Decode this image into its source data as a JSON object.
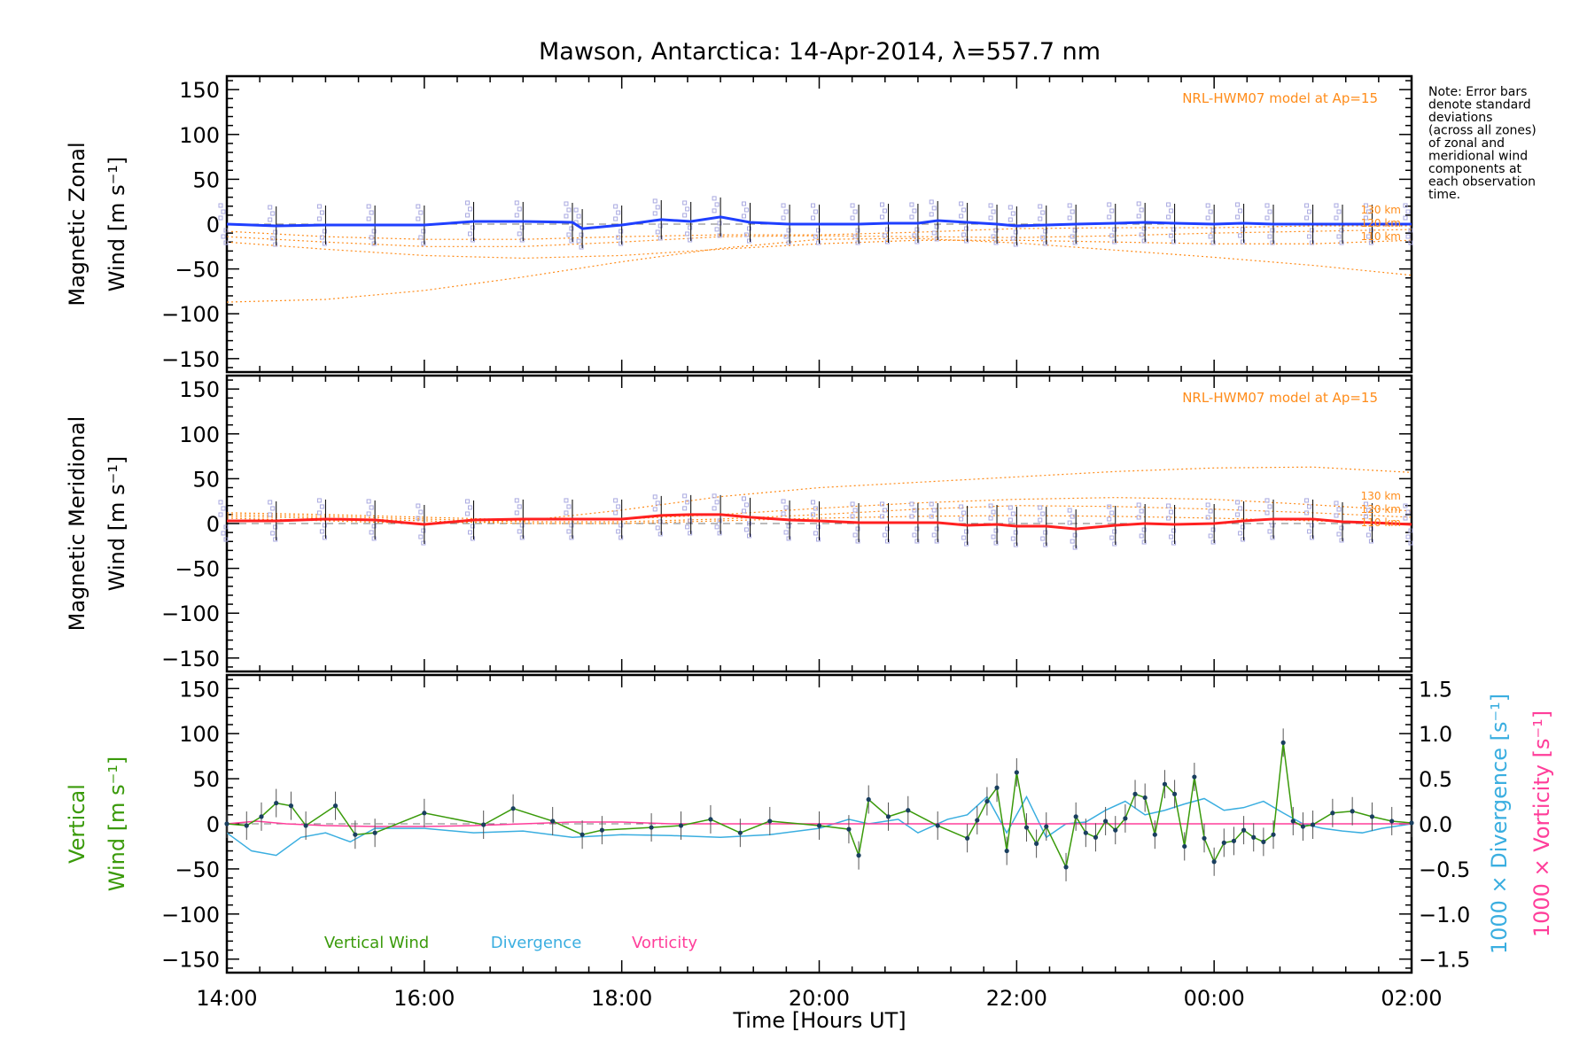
{
  "title": "Mawson, Antarctica: 14-Apr-2014, λ=557.7 nm",
  "note_lines": [
    "Note: Error bars",
    "denote standard",
    "deviations",
    "(across all zones)",
    "of zonal and",
    "meridional wind",
    "components at",
    "each observation",
    "time."
  ],
  "colors": {
    "zonal": "#1f3fff",
    "meridional": "#ff2020",
    "model": "#ff8c1a",
    "vertical": "#3a9a0a",
    "divergence": "#3aaee0",
    "vorticity": "#ff3e9a",
    "scatter": "#a8a8e0",
    "axis": "#000000"
  },
  "chart_data": [
    {
      "type": "line",
      "panel": "zonal",
      "ylabel_line1": "Magnetic Zonal",
      "ylabel_line2": "Wind [m s⁻¹]",
      "ylim": [
        -165,
        165
      ],
      "yticks": [
        150,
        100,
        50,
        0,
        -50,
        -100,
        -150
      ],
      "model_label": "NRL-HWM07 model at Ap=15",
      "model_altitude_labels": [
        "130 km",
        "120 km",
        "110 km"
      ],
      "series": [
        {
          "style": "observed",
          "x": [
            14.0,
            14.5,
            15.0,
            15.5,
            16.0,
            16.5,
            17.0,
            17.5,
            17.6,
            18.0,
            18.4,
            18.7,
            19.0,
            19.3,
            19.7,
            20.0,
            20.4,
            20.7,
            21.0,
            21.2,
            21.5,
            21.8,
            22.0,
            22.3,
            22.6,
            23.0,
            23.3,
            23.6,
            24.0,
            24.3,
            24.6,
            25.0,
            25.3,
            25.6,
            26.0
          ],
          "y": [
            0,
            -2,
            -1,
            -1,
            -1,
            3,
            3,
            2,
            -5,
            -1,
            5,
            3,
            8,
            2,
            0,
            0,
            0,
            1,
            1,
            4,
            2,
            0,
            -2,
            -1,
            0,
            1,
            2,
            1,
            0,
            1,
            0,
            0,
            0,
            0,
            0
          ]
        },
        {
          "style": "model",
          "name": "130 km",
          "x": [
            14.0,
            15.0,
            16.0,
            17.0,
            18.0,
            19.0,
            20.0,
            21.0,
            22.0,
            23.0,
            24.0,
            25.0,
            26.0
          ],
          "y": [
            -8,
            -14,
            -17,
            -17,
            -14,
            -12,
            -12,
            -9,
            -5,
            -4,
            -4,
            -2,
            -2
          ]
        },
        {
          "style": "model",
          "name": "120 km",
          "x": [
            14.0,
            15.0,
            16.0,
            17.0,
            18.0,
            19.0,
            20.0,
            21.0,
            22.0,
            23.0,
            24.0,
            25.0,
            26.0
          ],
          "y": [
            -14,
            -20,
            -25,
            -25,
            -20,
            -14,
            -13,
            -14,
            -15,
            -13,
            -10,
            -8,
            -6
          ]
        },
        {
          "style": "model",
          "name": "110 km",
          "x": [
            14.0,
            15.0,
            16.0,
            17.0,
            18.0,
            19.0,
            20.0,
            21.0,
            22.0,
            23.0,
            24.0,
            25.0,
            26.0
          ],
          "y": [
            -20,
            -28,
            -35,
            -38,
            -35,
            -28,
            -22,
            -18,
            -18,
            -20,
            -22,
            -22,
            -18
          ]
        },
        {
          "style": "model",
          "name": "",
          "x": [
            14.0,
            15.0,
            16.0,
            17.0,
            18.0,
            19.0,
            20.0,
            21.0,
            22.0,
            23.0,
            24.0,
            25.0,
            26.0
          ],
          "y": [
            -87,
            -84,
            -74,
            -59,
            -42,
            -27,
            -17,
            -16,
            -21,
            -29,
            -37,
            -46,
            -57
          ]
        }
      ]
    },
    {
      "type": "line",
      "panel": "meridional",
      "ylabel_line1": "Magnetic Meridional",
      "ylabel_line2": "Wind [m s⁻¹]",
      "ylim": [
        -165,
        165
      ],
      "yticks": [
        150,
        100,
        50,
        0,
        -50,
        -100,
        -150
      ],
      "model_label": "NRL-HWM07 model at Ap=15",
      "model_altitude_labels": [
        "130 km",
        "120 km",
        "110 km"
      ],
      "series": [
        {
          "style": "observed",
          "x": [
            14.0,
            14.5,
            15.0,
            15.5,
            16.0,
            16.5,
            17.0,
            17.5,
            18.0,
            18.4,
            18.7,
            19.0,
            19.3,
            19.7,
            20.0,
            20.4,
            20.7,
            21.0,
            21.2,
            21.5,
            21.8,
            22.0,
            22.3,
            22.6,
            23.0,
            23.3,
            23.6,
            24.0,
            24.3,
            24.6,
            25.0,
            25.3,
            25.6,
            26.0
          ],
          "y": [
            3,
            3,
            5,
            4,
            -1,
            4,
            5,
            5,
            5,
            9,
            10,
            10,
            7,
            4,
            3,
            1,
            1,
            1,
            1,
            -2,
            -1,
            -3,
            -3,
            -6,
            -2,
            0,
            -1,
            0,
            3,
            5,
            5,
            2,
            1,
            -1
          ]
        },
        {
          "style": "model",
          "name": "130 km",
          "x": [
            14.0,
            15.0,
            16.0,
            17.0,
            18.0,
            19.0,
            20.0,
            21.0,
            22.0,
            23.0,
            24.0,
            25.0,
            26.0
          ],
          "y": [
            12,
            10,
            7,
            4,
            5,
            10,
            17,
            23,
            27,
            29,
            27,
            21,
            14
          ]
        },
        {
          "style": "model",
          "name": "120 km",
          "x": [
            14.0,
            15.0,
            16.0,
            17.0,
            18.0,
            19.0,
            20.0,
            21.0,
            22.0,
            23.0,
            24.0,
            25.0,
            26.0
          ],
          "y": [
            10,
            8,
            5,
            2,
            2,
            5,
            10,
            16,
            20,
            19,
            16,
            12,
            7
          ]
        },
        {
          "style": "model",
          "name": "110 km",
          "x": [
            14.0,
            15.0,
            16.0,
            17.0,
            18.0,
            19.0,
            20.0,
            21.0,
            22.0,
            23.0,
            24.0,
            25.0,
            26.0
          ],
          "y": [
            8,
            6,
            3,
            0,
            0,
            3,
            6,
            8,
            9,
            8,
            6,
            3,
            0
          ]
        },
        {
          "style": "model",
          "name": "",
          "x": [
            14.0,
            15.0,
            16.0,
            17.0,
            18.0,
            19.0,
            20.0,
            21.0,
            22.0,
            23.0,
            24.0,
            25.0,
            26.0
          ],
          "y": [
            6,
            3,
            0,
            3,
            15,
            30,
            40,
            46,
            52,
            58,
            62,
            63,
            57
          ]
        }
      ]
    },
    {
      "type": "line",
      "panel": "vertical",
      "ylabel_line1": "Vertical",
      "ylabel_line2": "Wind [m s⁻¹]",
      "ylim": [
        -165,
        165
      ],
      "yticks": [
        150,
        100,
        50,
        0,
        -50,
        -100,
        -150
      ],
      "right_axis": {
        "label_divergence": "1000 × Divergence [s⁻¹]",
        "label_vorticity": "1000 × Vorticity [s⁻¹]",
        "ylim": [
          -1.65,
          1.65
        ],
        "yticks": [
          1.5,
          1.0,
          0.5,
          0.0,
          -0.5,
          -1.0,
          -1.5
        ],
        "ytick_labels": [
          "1.5",
          "1.0",
          "0.5",
          "0.0",
          "−0.5",
          "−1.0",
          "−1.5"
        ]
      },
      "legend": [
        "Vertical Wind",
        "Divergence",
        "Vorticity"
      ],
      "series": [
        {
          "name": "Vertical Wind",
          "x": [
            14.0,
            14.2,
            14.35,
            14.5,
            14.65,
            14.8,
            15.1,
            15.3,
            15.5,
            16.0,
            16.6,
            16.9,
            17.3,
            17.6,
            17.8,
            18.3,
            18.6,
            18.9,
            19.2,
            19.5,
            20.0,
            20.3,
            20.4,
            20.5,
            20.7,
            20.9,
            21.2,
            21.5,
            21.6,
            21.7,
            21.8,
            21.9,
            22.0,
            22.1,
            22.2,
            22.3,
            22.5,
            22.6,
            22.7,
            22.8,
            22.9,
            23.0,
            23.1,
            23.2,
            23.3,
            23.4,
            23.5,
            23.6,
            23.7,
            23.8,
            23.9,
            24.0,
            24.1,
            24.2,
            24.3,
            24.4,
            24.5,
            24.6,
            24.7,
            24.8,
            24.9,
            25.0,
            25.2,
            25.4,
            25.6,
            25.8,
            26.0
          ],
          "y": [
            0,
            -2,
            8,
            23,
            20,
            -2,
            20,
            -12,
            -10,
            12,
            -1,
            17,
            3,
            -12,
            -7,
            -4,
            -2,
            5,
            -10,
            3,
            -2,
            -6,
            -35,
            27,
            8,
            15,
            -2,
            -16,
            4,
            25,
            40,
            -30,
            57,
            -4,
            -22,
            -3,
            -48,
            8,
            -10,
            -15,
            3,
            -7,
            6,
            33,
            29,
            -12,
            44,
            33,
            -25,
            52,
            -16,
            -42,
            -21,
            -19,
            -7,
            -15,
            -20,
            -12,
            90,
            3,
            -3,
            -1,
            12,
            14,
            8,
            3,
            1
          ]
        },
        {
          "name": "Divergence",
          "x": [
            14.0,
            14.25,
            14.5,
            14.75,
            15.0,
            15.25,
            15.5,
            16.0,
            16.5,
            17.0,
            17.5,
            18.0,
            18.5,
            19.0,
            19.5,
            20.0,
            20.3,
            20.5,
            20.8,
            21.0,
            21.3,
            21.5,
            21.7,
            21.9,
            22.1,
            22.3,
            22.5,
            22.7,
            22.9,
            23.1,
            23.3,
            23.5,
            23.7,
            23.9,
            24.1,
            24.3,
            24.5,
            24.7,
            24.9,
            25.1,
            25.3,
            25.5,
            25.7,
            26.0
          ],
          "y": [
            -0.1,
            -0.3,
            -0.35,
            -0.15,
            -0.1,
            -0.2,
            -0.05,
            -0.05,
            -0.1,
            -0.08,
            -0.15,
            -0.12,
            -0.13,
            -0.15,
            -0.12,
            -0.05,
            0.05,
            0.0,
            0.05,
            -0.1,
            0.05,
            0.1,
            0.3,
            -0.1,
            0.3,
            -0.15,
            0.0,
            0.02,
            0.15,
            0.25,
            0.1,
            0.15,
            0.22,
            0.28,
            0.15,
            0.18,
            0.25,
            0.12,
            0.0,
            -0.05,
            -0.08,
            -0.1,
            -0.05,
            0.0
          ]
        },
        {
          "name": "Vorticity",
          "x": [
            14.0,
            14.3,
            14.6,
            15.0,
            15.5,
            16.0,
            16.5,
            17.0,
            17.5,
            18.0,
            18.5,
            19.0,
            19.5,
            20.0,
            20.5,
            21.0,
            21.5,
            22.0,
            22.5,
            23.0,
            23.5,
            24.0,
            24.5,
            25.0,
            25.5,
            26.0
          ],
          "y": [
            0.0,
            0.03,
            0.0,
            -0.02,
            -0.03,
            -0.03,
            -0.02,
            0.0,
            0.02,
            0.02,
            0.0,
            0.0,
            0.0,
            0.0,
            0.0,
            0.0,
            0.0,
            0.0,
            0.0,
            0.0,
            0.0,
            0.0,
            0.0,
            0.0,
            0.0,
            0.0
          ]
        }
      ]
    }
  ],
  "xaxis": {
    "label": "Time [Hours UT]",
    "xlim": [
      14.0,
      26.0
    ],
    "ticks": [
      14,
      16,
      18,
      20,
      22,
      24,
      26
    ],
    "tick_labels": [
      "14:00",
      "16:00",
      "18:00",
      "20:00",
      "22:00",
      "00:00",
      "02:00"
    ]
  }
}
